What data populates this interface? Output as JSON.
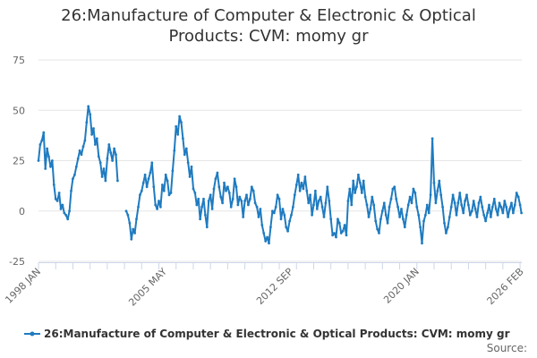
{
  "chart_data": {
    "type": "line",
    "title_lines": [
      "26:Manufacture of Computer & Electronic & Optical",
      "Products: CVM: momy gr"
    ],
    "xlabel": "",
    "ylabel": "",
    "x_range": [
      1998.0,
      2026.1
    ],
    "ylim": [
      -25,
      75
    ],
    "yticks": [
      -25,
      0,
      25,
      50,
      75
    ],
    "xticks": [
      {
        "label": "1998 JAN",
        "x": 1998.0
      },
      {
        "label": "2005 MAY",
        "x": 2005.33
      },
      {
        "label": "2012 SEP",
        "x": 2012.67
      },
      {
        "label": "2020 JAN",
        "x": 2020.0
      },
      {
        "label": "2026 FEB",
        "x": 2026.08
      }
    ],
    "grid": true,
    "legend": "bottom-center",
    "color": "#1f7bc0",
    "series": [
      {
        "name": "26:Manufacture of Computer & Electronic & Optical Products: CVM: momy gr",
        "segments": [
          [
            [
              1998.0,
              25
            ],
            [
              1998.1,
              33
            ],
            [
              1998.2,
              35
            ],
            [
              1998.3,
              39
            ],
            [
              1998.4,
              21
            ],
            [
              1998.5,
              31
            ],
            [
              1998.6,
              27
            ],
            [
              1998.7,
              22
            ],
            [
              1998.8,
              25
            ],
            [
              1998.9,
              13
            ],
            [
              1999.0,
              6
            ],
            [
              1999.1,
              5
            ],
            [
              1999.2,
              9
            ],
            [
              1999.3,
              1
            ],
            [
              1999.4,
              3
            ],
            [
              1999.5,
              -1
            ],
            [
              1999.6,
              -2
            ],
            [
              1999.7,
              -4
            ],
            [
              1999.8,
              0
            ],
            [
              1999.9,
              10
            ],
            [
              2000.0,
              16
            ],
            [
              2000.1,
              18
            ],
            [
              2000.2,
              22
            ],
            [
              2000.3,
              26
            ],
            [
              2000.4,
              30
            ],
            [
              2000.5,
              28
            ],
            [
              2000.6,
              32
            ],
            [
              2000.7,
              35
            ],
            [
              2000.8,
              44
            ],
            [
              2000.9,
              52
            ],
            [
              2001.0,
              48
            ],
            [
              2001.1,
              38
            ],
            [
              2001.2,
              41
            ],
            [
              2001.3,
              33
            ],
            [
              2001.4,
              36
            ],
            [
              2001.5,
              27
            ],
            [
              2001.6,
              24
            ],
            [
              2001.7,
              17
            ],
            [
              2001.8,
              21
            ],
            [
              2001.9,
              15
            ],
            [
              2002.0,
              26
            ],
            [
              2002.1,
              33
            ],
            [
              2002.2,
              29
            ],
            [
              2002.3,
              25
            ],
            [
              2002.4,
              31
            ],
            [
              2002.5,
              28
            ],
            [
              2002.6,
              15
            ]
          ],
          [
            [
              2003.1,
              0
            ],
            [
              2003.2,
              -2
            ],
            [
              2003.3,
              -6
            ],
            [
              2003.4,
              -14
            ],
            [
              2003.5,
              -9
            ],
            [
              2003.6,
              -11
            ],
            [
              2003.7,
              -4
            ],
            [
              2003.8,
              2
            ],
            [
              2003.9,
              8
            ],
            [
              2004.0,
              10
            ],
            [
              2004.1,
              14
            ],
            [
              2004.2,
              18
            ],
            [
              2004.3,
              12
            ],
            [
              2004.4,
              16
            ],
            [
              2004.5,
              19
            ],
            [
              2004.6,
              24
            ],
            [
              2004.7,
              12
            ],
            [
              2004.8,
              3
            ],
            [
              2004.9,
              1
            ],
            [
              2005.0,
              5
            ],
            [
              2005.1,
              2
            ],
            [
              2005.2,
              13
            ],
            [
              2005.3,
              10
            ],
            [
              2005.4,
              18
            ],
            [
              2005.5,
              15
            ],
            [
              2005.6,
              8
            ],
            [
              2005.7,
              9
            ],
            [
              2005.8,
              20
            ],
            [
              2005.9,
              30
            ],
            [
              2006.0,
              42
            ],
            [
              2006.1,
              38
            ],
            [
              2006.2,
              47
            ],
            [
              2006.3,
              44
            ],
            [
              2006.4,
              36
            ],
            [
              2006.5,
              28
            ],
            [
              2006.6,
              31
            ],
            [
              2006.7,
              24
            ],
            [
              2006.8,
              17
            ],
            [
              2006.9,
              22
            ],
            [
              2007.0,
              11
            ],
            [
              2007.1,
              9
            ],
            [
              2007.2,
              3
            ],
            [
              2007.3,
              6
            ],
            [
              2007.4,
              -4
            ],
            [
              2007.5,
              2
            ],
            [
              2007.6,
              6
            ],
            [
              2007.7,
              -2
            ],
            [
              2007.8,
              -8
            ],
            [
              2007.9,
              5
            ],
            [
              2008.0,
              8
            ],
            [
              2008.1,
              1
            ],
            [
              2008.2,
              11
            ],
            [
              2008.3,
              16
            ],
            [
              2008.4,
              19
            ],
            [
              2008.5,
              12
            ],
            [
              2008.6,
              7
            ],
            [
              2008.7,
              4
            ],
            [
              2008.8,
              14
            ],
            [
              2008.9,
              10
            ],
            [
              2009.0,
              12
            ],
            [
              2009.1,
              9
            ],
            [
              2009.2,
              2
            ],
            [
              2009.3,
              6
            ],
            [
              2009.4,
              16
            ],
            [
              2009.5,
              12
            ],
            [
              2009.6,
              3
            ],
            [
              2009.7,
              7
            ],
            [
              2009.8,
              5
            ],
            [
              2009.9,
              -3
            ],
            [
              2010.0,
              5
            ],
            [
              2010.1,
              8
            ],
            [
              2010.2,
              3
            ],
            [
              2010.3,
              6
            ],
            [
              2010.4,
              12
            ],
            [
              2010.5,
              10
            ],
            [
              2010.6,
              4
            ],
            [
              2010.7,
              2
            ],
            [
              2010.8,
              -3
            ],
            [
              2010.9,
              1
            ],
            [
              2011.0,
              -7
            ],
            [
              2011.1,
              -11
            ],
            [
              2011.2,
              -15
            ],
            [
              2011.3,
              -13
            ],
            [
              2011.4,
              -16
            ],
            [
              2011.5,
              -8
            ],
            [
              2011.6,
              0
            ],
            [
              2011.7,
              -1
            ],
            [
              2011.8,
              2
            ],
            [
              2011.9,
              8
            ],
            [
              2012.0,
              6
            ],
            [
              2012.1,
              -4
            ],
            [
              2012.2,
              1
            ],
            [
              2012.3,
              -2
            ],
            [
              2012.4,
              -8
            ],
            [
              2012.5,
              -10
            ],
            [
              2012.6,
              -5
            ],
            [
              2012.7,
              -2
            ],
            [
              2012.8,
              2
            ],
            [
              2012.9,
              8
            ],
            [
              2013.0,
              13
            ],
            [
              2013.1,
              18
            ],
            [
              2013.2,
              10
            ],
            [
              2013.3,
              14
            ],
            [
              2013.4,
              11
            ],
            [
              2013.5,
              17
            ],
            [
              2013.6,
              10
            ],
            [
              2013.7,
              4
            ],
            [
              2013.8,
              8
            ],
            [
              2013.9,
              -2
            ],
            [
              2014.0,
              3
            ],
            [
              2014.1,
              10
            ],
            [
              2014.2,
              1
            ],
            [
              2014.3,
              5
            ],
            [
              2014.4,
              7
            ],
            [
              2014.5,
              2
            ],
            [
              2014.6,
              -3
            ],
            [
              2014.7,
              4
            ],
            [
              2014.8,
              12
            ],
            [
              2014.9,
              5
            ],
            [
              2015.0,
              -4
            ],
            [
              2015.1,
              -12
            ],
            [
              2015.2,
              -11
            ],
            [
              2015.3,
              -13
            ],
            [
              2015.4,
              -4
            ],
            [
              2015.5,
              -6
            ],
            [
              2015.6,
              -11
            ],
            [
              2015.7,
              -10
            ],
            [
              2015.8,
              -7
            ],
            [
              2015.9,
              -12
            ],
            [
              2016.0,
              5
            ],
            [
              2016.1,
              11
            ],
            [
              2016.2,
              3
            ],
            [
              2016.3,
              15
            ],
            [
              2016.4,
              9
            ],
            [
              2016.5,
              12
            ],
            [
              2016.6,
              18
            ],
            [
              2016.7,
              14
            ],
            [
              2016.8,
              9
            ],
            [
              2016.9,
              15
            ],
            [
              2017.0,
              7
            ],
            [
              2017.1,
              3
            ],
            [
              2017.2,
              -3
            ],
            [
              2017.3,
              1
            ],
            [
              2017.4,
              7
            ],
            [
              2017.5,
              3
            ],
            [
              2017.6,
              -5
            ],
            [
              2017.7,
              -9
            ],
            [
              2017.8,
              -11
            ],
            [
              2017.9,
              -4
            ],
            [
              2018.0,
              0
            ],
            [
              2018.1,
              4
            ],
            [
              2018.2,
              -2
            ],
            [
              2018.3,
              -6
            ],
            [
              2018.4,
              2
            ],
            [
              2018.5,
              6
            ],
            [
              2018.6,
              11
            ],
            [
              2018.7,
              12
            ],
            [
              2018.8,
              6
            ],
            [
              2018.9,
              2
            ],
            [
              2019.0,
              -3
            ],
            [
              2019.1,
              1
            ],
            [
              2019.2,
              -4
            ],
            [
              2019.3,
              -8
            ],
            [
              2019.4,
              -2
            ],
            [
              2019.5,
              3
            ],
            [
              2019.6,
              7
            ],
            [
              2019.7,
              4
            ],
            [
              2019.8,
              11
            ],
            [
              2019.9,
              9
            ],
            [
              2020.0,
              2
            ],
            [
              2020.1,
              -2
            ],
            [
              2020.2,
              -8
            ],
            [
              2020.3,
              -16
            ],
            [
              2020.4,
              -5
            ],
            [
              2020.5,
              -2
            ],
            [
              2020.6,
              3
            ],
            [
              2020.7,
              -1
            ],
            [
              2020.8,
              8
            ],
            [
              2020.9,
              36
            ],
            [
              2021.0,
              14
            ],
            [
              2021.1,
              4
            ],
            [
              2021.2,
              10
            ],
            [
              2021.3,
              15
            ],
            [
              2021.4,
              8
            ],
            [
              2021.5,
              2
            ],
            [
              2021.6,
              -6
            ],
            [
              2021.7,
              -11
            ],
            [
              2021.8,
              -8
            ],
            [
              2021.9,
              -3
            ],
            [
              2022.0,
              2
            ],
            [
              2022.1,
              8
            ],
            [
              2022.2,
              4
            ],
            [
              2022.3,
              -2
            ],
            [
              2022.4,
              4
            ],
            [
              2022.5,
              9
            ],
            [
              2022.6,
              3
            ],
            [
              2022.7,
              -1
            ],
            [
              2022.8,
              5
            ],
            [
              2022.9,
              8
            ],
            [
              2023.0,
              3
            ],
            [
              2023.1,
              -2
            ],
            [
              2023.2,
              0
            ],
            [
              2023.3,
              5
            ],
            [
              2023.4,
              1
            ],
            [
              2023.5,
              -3
            ],
            [
              2023.6,
              4
            ],
            [
              2023.7,
              7
            ],
            [
              2023.8,
              2
            ],
            [
              2023.9,
              -2
            ],
            [
              2024.0,
              -5
            ],
            [
              2024.1,
              -1
            ],
            [
              2024.2,
              3
            ],
            [
              2024.3,
              -3
            ],
            [
              2024.4,
              2
            ],
            [
              2024.5,
              6
            ],
            [
              2024.6,
              1
            ],
            [
              2024.7,
              -2
            ],
            [
              2024.8,
              4
            ],
            [
              2024.9,
              2
            ],
            [
              2025.0,
              -1
            ],
            [
              2025.1,
              5
            ],
            [
              2025.2,
              2
            ],
            [
              2025.3,
              -3
            ],
            [
              2025.4,
              1
            ],
            [
              2025.5,
              4
            ],
            [
              2025.6,
              -1
            ],
            [
              2025.7,
              3
            ],
            [
              2025.8,
              9
            ],
            [
              2025.9,
              7
            ],
            [
              2026.0,
              3
            ],
            [
              2026.08,
              -1
            ]
          ]
        ]
      }
    ]
  },
  "legend": {
    "label": "26:Manufacture of Computer & Electronic & Optical Products: CVM: momy gr"
  },
  "credits": {
    "source": "Source:"
  }
}
